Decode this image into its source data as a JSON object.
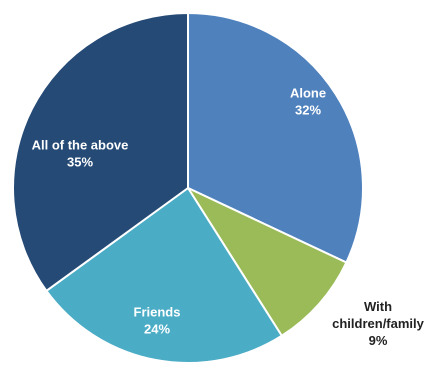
{
  "chart_data": {
    "type": "pie",
    "title": "",
    "start_angle_deg": 0,
    "direction": "clockwise",
    "slices": [
      {
        "label": "Alone",
        "percent_label": "32%",
        "value": 32,
        "color": "#4f81bd",
        "label_color": "#ffffff",
        "label_lines": [
          "Alone"
        ]
      },
      {
        "label": "With children/family",
        "percent_label": "9%",
        "value": 9,
        "color": "#9bbb59",
        "label_color": "#222222",
        "label_lines": [
          "With",
          "children/family"
        ]
      },
      {
        "label": "Friends",
        "percent_label": "24%",
        "value": 24,
        "color": "#4bacc6",
        "label_color": "#ffffff",
        "label_lines": [
          "Friends"
        ]
      },
      {
        "label": "All of the above",
        "percent_label": "35%",
        "value": 35,
        "color": "#254a75",
        "label_color": "#ffffff",
        "label_lines": [
          "All of the above"
        ]
      }
    ]
  }
}
